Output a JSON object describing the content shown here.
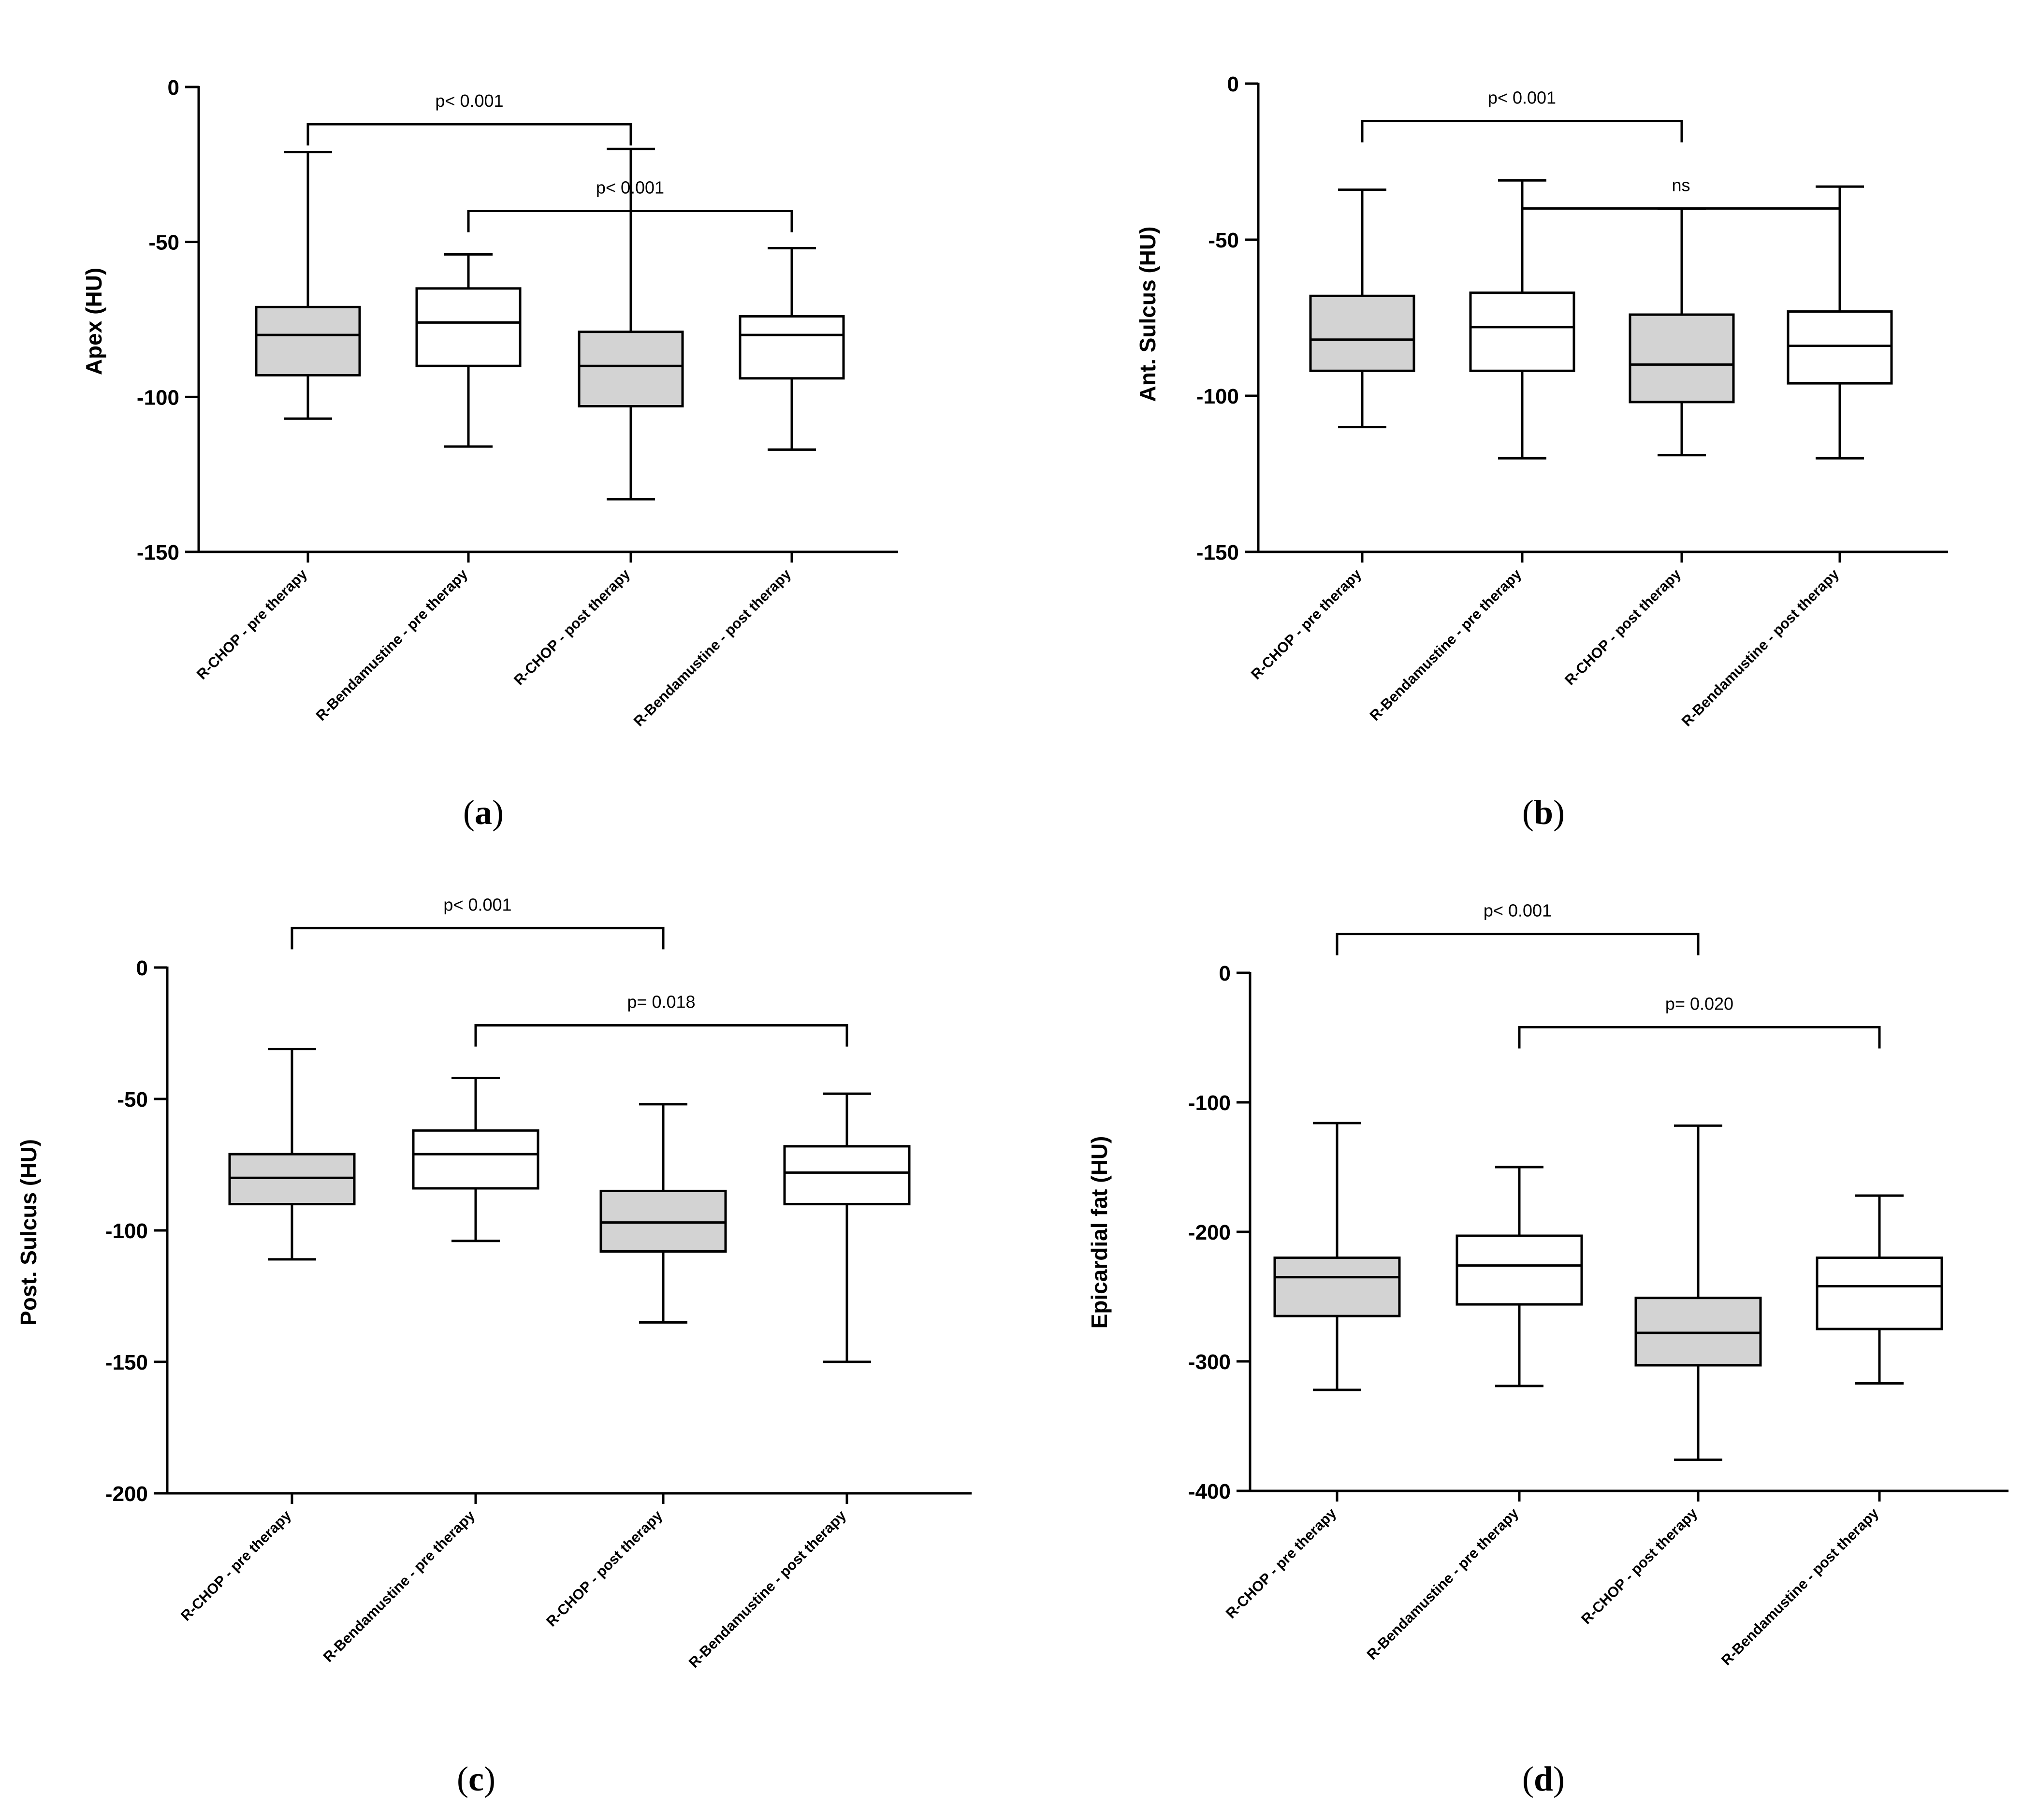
{
  "chart_data": [
    {
      "type": "boxplot",
      "panel_label": "a",
      "title": "",
      "xlabel": "",
      "ylabel": "Apex (HU)",
      "ylim": [
        -150,
        0
      ],
      "yticks": [
        0,
        -50,
        -100,
        -150
      ],
      "categories": [
        "R-CHOP - pre therapy",
        "R-Bendamustine - pre therapy",
        "R-CHOP - post therapy",
        "R-Bendamustine - post therapy"
      ],
      "fills": [
        "#d3d3d3",
        "#ffffff",
        "#d3d3d3",
        "#ffffff"
      ],
      "boxes": [
        {
          "min": -107,
          "q1": -93,
          "median": -80,
          "q3": -71,
          "max": -21
        },
        {
          "min": -116,
          "q1": -90,
          "median": -76,
          "q3": -65,
          "max": -54
        },
        {
          "min": -133,
          "q1": -103,
          "median": -90,
          "q3": -79,
          "max": -20
        },
        {
          "min": -117,
          "q1": -94,
          "median": -80,
          "q3": -74,
          "max": -52
        }
      ],
      "comparisons": [
        {
          "from": 0,
          "to": 2,
          "level": -12,
          "label": "p< 0.001"
        },
        {
          "from": 1,
          "to": 3,
          "level": -40,
          "label": "p< 0.001"
        }
      ]
    },
    {
      "type": "boxplot",
      "panel_label": "b",
      "title": "",
      "xlabel": "",
      "ylabel": "Ant.  Sulcus (HU)",
      "ylim": [
        -150,
        0
      ],
      "yticks": [
        0,
        -50,
        -100,
        -150
      ],
      "categories": [
        "R-CHOP - pre therapy",
        "R-Bendamustine - pre therapy",
        "R-CHOP - post therapy",
        "R-Bendamustine - post therapy"
      ],
      "fills": [
        "#d3d3d3",
        "#ffffff",
        "#d3d3d3",
        "#ffffff"
      ],
      "boxes": [
        {
          "min": -110,
          "q1": -92,
          "median": -82,
          "q3": -68,
          "max": -34
        },
        {
          "min": -120,
          "q1": -92,
          "median": -78,
          "q3": -67,
          "max": -31
        },
        {
          "min": -119,
          "q1": -102,
          "median": -90,
          "q3": -74,
          "max": -40
        },
        {
          "min": -120,
          "q1": -96,
          "median": -84,
          "q3": -73,
          "max": -33
        }
      ],
      "comparisons": [
        {
          "from": 0,
          "to": 2,
          "level": -12,
          "label": "p< 0.001"
        },
        {
          "from": 1,
          "to": 3,
          "level": -40,
          "label": "ns"
        }
      ]
    },
    {
      "type": "boxplot",
      "panel_label": "c",
      "title": "",
      "xlabel": "",
      "ylabel": "Post.  Sulcus (HU)",
      "ylim": [
        -200,
        0
      ],
      "yticks": [
        0,
        -50,
        -100,
        -150,
        -200
      ],
      "categories": [
        "R-CHOP - pre therapy",
        "R-Bendamustine - pre therapy",
        "R-CHOP - post therapy",
        "R-Bendamustine - post therapy"
      ],
      "fills": [
        "#d3d3d3",
        "#ffffff",
        "#d3d3d3",
        "#ffffff"
      ],
      "boxes": [
        {
          "min": -111,
          "q1": -90,
          "median": -80,
          "q3": -71,
          "max": -31
        },
        {
          "min": -104,
          "q1": -84,
          "median": -71,
          "q3": -62,
          "max": -42
        },
        {
          "min": -135,
          "q1": -108,
          "median": -97,
          "q3": -85,
          "max": -52
        },
        {
          "min": -150,
          "q1": -90,
          "median": -78,
          "q3": -68,
          "max": -48
        }
      ],
      "comparisons": [
        {
          "from": 0,
          "to": 2,
          "level": 15,
          "label": "p< 0.001"
        },
        {
          "from": 1,
          "to": 3,
          "level": -22,
          "label": "p= 0.018"
        }
      ]
    },
    {
      "type": "boxplot",
      "panel_label": "d",
      "title": "",
      "xlabel": "",
      "ylabel": "Epicardial fat (HU)",
      "ylim": [
        -400,
        0
      ],
      "yticks": [
        0,
        -100,
        -200,
        -300,
        -400
      ],
      "categories": [
        "R-CHOP - pre therapy",
        "R-Bendamustine - pre therapy",
        "R-CHOP - post therapy",
        "R-Bendamustine - post therapy"
      ],
      "fills": [
        "#d3d3d3",
        "#ffffff",
        "#d3d3d3",
        "#ffffff"
      ],
      "boxes": [
        {
          "min": -322,
          "q1": -265,
          "median": -235,
          "q3": -220,
          "max": -116
        },
        {
          "min": -319,
          "q1": -256,
          "median": -226,
          "q3": -203,
          "max": -150
        },
        {
          "min": -376,
          "q1": -303,
          "median": -278,
          "q3": -251,
          "max": -118
        },
        {
          "min": -317,
          "q1": -275,
          "median": -242,
          "q3": -220,
          "max": -172
        }
      ],
      "comparisons": [
        {
          "from": 0,
          "to": 2,
          "level": 30,
          "label": "p< 0.001"
        },
        {
          "from": 1,
          "to": 3,
          "level": -42,
          "label": "p= 0.020"
        }
      ]
    }
  ]
}
